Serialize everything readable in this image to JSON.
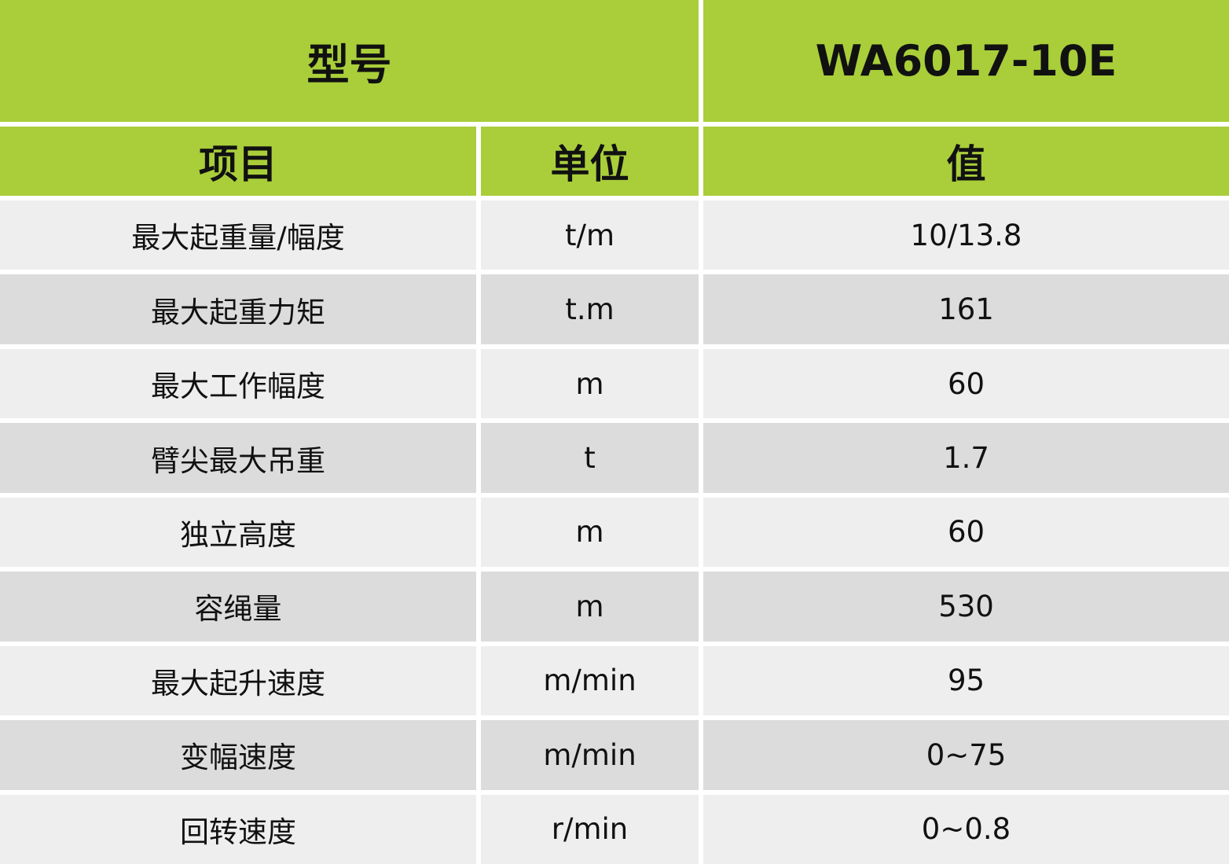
{
  "header": {
    "model_label": "型号",
    "model_value": "WA6017-10E",
    "col_item": "项目",
    "col_unit": "单位",
    "col_value": "值"
  },
  "colors": {
    "header_green": "#a9ce3a",
    "row_light": "#eeeeee",
    "row_dark": "#dcdcdc"
  },
  "rows": [
    {
      "item": "最大起重量/幅度",
      "unit": "t/m",
      "value": "10/13.8"
    },
    {
      "item": "最大起重力矩",
      "unit": "t.m",
      "value": "161"
    },
    {
      "item": "最大工作幅度",
      "unit": "m",
      "value": "60"
    },
    {
      "item": "臂尖最大吊重",
      "unit": "t",
      "value": "1.7"
    },
    {
      "item": "独立高度",
      "unit": "m",
      "value": "60"
    },
    {
      "item": "容绳量",
      "unit": "m",
      "value": "530"
    },
    {
      "item": "最大起升速度",
      "unit": "m/min",
      "value": "95"
    },
    {
      "item": "变幅速度",
      "unit": "m/min",
      "value": "0~75"
    },
    {
      "item": "回转速度",
      "unit": "r/min",
      "value": "0~0.8"
    }
  ]
}
